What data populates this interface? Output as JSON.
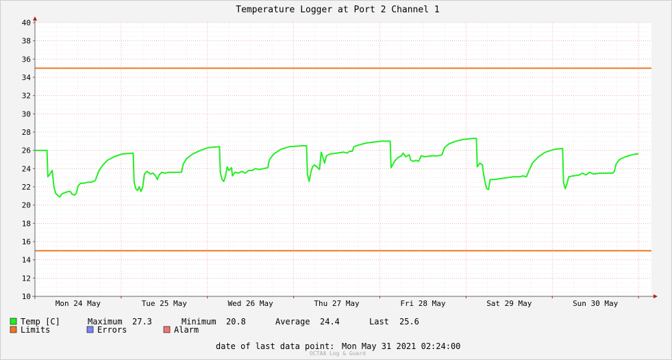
{
  "chart_data": {
    "type": "line",
    "title": "Temperature Logger at Port 2 Channel 1",
    "ylim": [
      10,
      40
    ],
    "y_ticks": [
      10,
      12,
      14,
      16,
      18,
      20,
      22,
      24,
      26,
      28,
      30,
      32,
      34,
      36,
      38,
      40
    ],
    "xlim": [
      0,
      7.15
    ],
    "x_ticks": [
      {
        "x": 0.5,
        "label": "Mon 24 May"
      },
      {
        "x": 1.5,
        "label": "Tue 25 May"
      },
      {
        "x": 2.5,
        "label": "Wed 26 May"
      },
      {
        "x": 3.5,
        "label": "Thu 27 May"
      },
      {
        "x": 4.5,
        "label": "Fri 28 May"
      },
      {
        "x": 5.5,
        "label": "Sat 29 May"
      },
      {
        "x": 6.5,
        "label": "Sun 30 May"
      }
    ],
    "limits": [
      35,
      15
    ],
    "grid": true,
    "series": [
      {
        "name": "Temp [C]",
        "color": "#22ee22",
        "points": [
          [
            0,
            26
          ],
          [
            0.14,
            26
          ],
          [
            0.15,
            23.1
          ],
          [
            0.18,
            23.5
          ],
          [
            0.2,
            23.8
          ],
          [
            0.22,
            22
          ],
          [
            0.24,
            21.3
          ],
          [
            0.27,
            21
          ],
          [
            0.29,
            20.9
          ],
          [
            0.31,
            21.2
          ],
          [
            0.33,
            21.3
          ],
          [
            0.36,
            21.4
          ],
          [
            0.39,
            21.5
          ],
          [
            0.41,
            21.5
          ],
          [
            0.43,
            21.2
          ],
          [
            0.46,
            21.1
          ],
          [
            0.48,
            21.3
          ],
          [
            0.5,
            22.1
          ],
          [
            0.53,
            22.4
          ],
          [
            0.57,
            22.4
          ],
          [
            0.61,
            22.5
          ],
          [
            0.65,
            22.5
          ],
          [
            0.68,
            22.6
          ],
          [
            0.7,
            22.7
          ],
          [
            0.74,
            23.7
          ],
          [
            0.78,
            24.3
          ],
          [
            0.84,
            24.9
          ],
          [
            0.92,
            25.3
          ],
          [
            1.01,
            25.6
          ],
          [
            1.14,
            25.7
          ],
          [
            1.15,
            22.5
          ],
          [
            1.17,
            21.8
          ],
          [
            1.19,
            21.6
          ],
          [
            1.21,
            22
          ],
          [
            1.23,
            21.5
          ],
          [
            1.25,
            22
          ],
          [
            1.27,
            23.4
          ],
          [
            1.3,
            23.7
          ],
          [
            1.34,
            23.4
          ],
          [
            1.37,
            23.5
          ],
          [
            1.4,
            23.2
          ],
          [
            1.42,
            22.8
          ],
          [
            1.44,
            23.3
          ],
          [
            1.47,
            23.6
          ],
          [
            1.51,
            23.5
          ],
          [
            1.55,
            23.6
          ],
          [
            1.6,
            23.6
          ],
          [
            1.65,
            23.6
          ],
          [
            1.7,
            23.6
          ],
          [
            1.72,
            24.5
          ],
          [
            1.76,
            25.1
          ],
          [
            1.83,
            25.6
          ],
          [
            1.92,
            26
          ],
          [
            2.01,
            26.3
          ],
          [
            2.14,
            26.4
          ],
          [
            2.15,
            23.6
          ],
          [
            2.17,
            22.8
          ],
          [
            2.19,
            22.6
          ],
          [
            2.21,
            23.2
          ],
          [
            2.23,
            24.2
          ],
          [
            2.25,
            23.8
          ],
          [
            2.28,
            24.1
          ],
          [
            2.29,
            23.2
          ],
          [
            2.32,
            23.6
          ],
          [
            2.36,
            23.5
          ],
          [
            2.4,
            23.7
          ],
          [
            2.44,
            23.5
          ],
          [
            2.48,
            23.8
          ],
          [
            2.52,
            23.8
          ],
          [
            2.56,
            24
          ],
          [
            2.6,
            23.9
          ],
          [
            2.65,
            24
          ],
          [
            2.7,
            24.1
          ],
          [
            2.72,
            25
          ],
          [
            2.77,
            25.6
          ],
          [
            2.85,
            26.1
          ],
          [
            2.95,
            26.4
          ],
          [
            3.1,
            26.5
          ],
          [
            3.15,
            26.5
          ],
          [
            3.16,
            23.4
          ],
          [
            3.18,
            22.6
          ],
          [
            3.2,
            23.6
          ],
          [
            3.22,
            24.2
          ],
          [
            3.24,
            24.4
          ],
          [
            3.27,
            24.2
          ],
          [
            3.3,
            23.9
          ],
          [
            3.32,
            25.8
          ],
          [
            3.34,
            25.2
          ],
          [
            3.36,
            24.6
          ],
          [
            3.38,
            25.4
          ],
          [
            3.42,
            25.6
          ],
          [
            3.5,
            25.7
          ],
          [
            3.58,
            25.8
          ],
          [
            3.62,
            25.7
          ],
          [
            3.65,
            25.9
          ],
          [
            3.68,
            25.9
          ],
          [
            3.7,
            26.4
          ],
          [
            3.76,
            26.6
          ],
          [
            3.84,
            26.8
          ],
          [
            3.92,
            26.9
          ],
          [
            4.02,
            27
          ],
          [
            4.12,
            27
          ],
          [
            4.13,
            24.1
          ],
          [
            4.17,
            24.8
          ],
          [
            4.21,
            25.2
          ],
          [
            4.25,
            25.4
          ],
          [
            4.27,
            25.7
          ],
          [
            4.3,
            25.3
          ],
          [
            4.34,
            25.5
          ],
          [
            4.36,
            24.9
          ],
          [
            4.39,
            24.8
          ],
          [
            4.42,
            24.9
          ],
          [
            4.45,
            24.8
          ],
          [
            4.48,
            25.4
          ],
          [
            4.52,
            25.3
          ],
          [
            4.6,
            25.4
          ],
          [
            4.67,
            25.4
          ],
          [
            4.72,
            25.5
          ],
          [
            4.75,
            26.3
          ],
          [
            4.8,
            26.7
          ],
          [
            4.88,
            27
          ],
          [
            4.97,
            27.2
          ],
          [
            5.08,
            27.3
          ],
          [
            5.12,
            27.3
          ],
          [
            5.13,
            24.2
          ],
          [
            5.16,
            24.6
          ],
          [
            5.19,
            24.4
          ],
          [
            5.2,
            23.6
          ],
          [
            5.22,
            22.5
          ],
          [
            5.24,
            21.8
          ],
          [
            5.26,
            21.7
          ],
          [
            5.28,
            22.8
          ],
          [
            5.33,
            22.8
          ],
          [
            5.4,
            22.9
          ],
          [
            5.47,
            23
          ],
          [
            5.55,
            23.1
          ],
          [
            5.62,
            23.1
          ],
          [
            5.66,
            23.2
          ],
          [
            5.7,
            23.1
          ],
          [
            5.73,
            23.8
          ],
          [
            5.77,
            24.6
          ],
          [
            5.84,
            25.3
          ],
          [
            5.92,
            25.8
          ],
          [
            6.02,
            26.1
          ],
          [
            6.12,
            26.2
          ],
          [
            6.13,
            22.5
          ],
          [
            6.15,
            21.8
          ],
          [
            6.17,
            22.3
          ],
          [
            6.19,
            23.1
          ],
          [
            6.24,
            23.2
          ],
          [
            6.31,
            23.3
          ],
          [
            6.35,
            23.5
          ],
          [
            6.39,
            23.3
          ],
          [
            6.43,
            23.6
          ],
          [
            6.48,
            23.4
          ],
          [
            6.55,
            23.5
          ],
          [
            6.62,
            23.5
          ],
          [
            6.7,
            23.5
          ],
          [
            6.72,
            23.7
          ],
          [
            6.74,
            24.5
          ],
          [
            6.78,
            25
          ],
          [
            6.85,
            25.3
          ],
          [
            6.92,
            25.5
          ],
          [
            6.97,
            25.6
          ],
          [
            7.0,
            25.6
          ]
        ]
      }
    ],
    "legend": [
      {
        "label": "Temp [C]",
        "color": "#22ee22"
      },
      {
        "label": "Limits",
        "color": "#ee7722"
      },
      {
        "label": "Errors",
        "color": "#7788ee"
      },
      {
        "label": "Alarm",
        "color": "#ee7777"
      }
    ],
    "stats": {
      "max_label": "Maximum",
      "max": "27.3",
      "min_label": "Minimum",
      "min": "20.8",
      "avg_label": "Average",
      "avg": "24.4",
      "last_label": "Last",
      "last": "25.6"
    },
    "last_point_label": "date of last data point:",
    "last_point_value": "Mon May 31 2021 02:24:00",
    "watermark": "OCTAA Log & Guard"
  }
}
